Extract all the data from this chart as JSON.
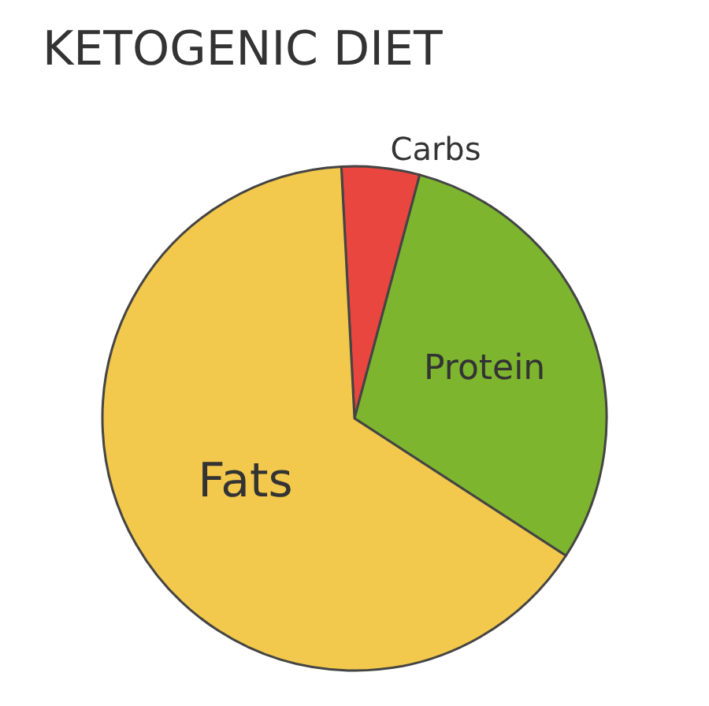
{
  "chart_data": {
    "type": "pie",
    "title": "KETOGENIC DIET",
    "categories": [
      "Carbs",
      "Protein",
      "Fats"
    ],
    "values": [
      5,
      30,
      65
    ],
    "colors": [
      "#e8463f",
      "#7db52f",
      "#f2c94c"
    ],
    "legend": false
  }
}
